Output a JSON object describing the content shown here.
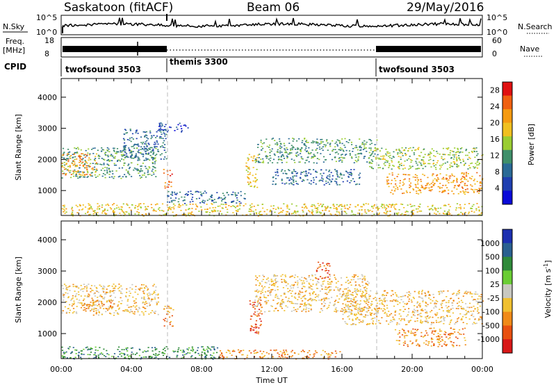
{
  "header": {
    "station": "Saskatoon (fitACF)",
    "beam": "Beam 06",
    "date": "29/May/2016"
  },
  "status_panel": {
    "nsky_label": "N.Sky",
    "nsky_ticks": [
      "10^5",
      "10^0"
    ],
    "nsearch_label": "N.Search",
    "nsearch_ticks": [
      "10^5",
      "10^0"
    ],
    "freq_label": "Freq.",
    "freq_unit": "[MHz]",
    "freq_ticks": [
      "18",
      "8"
    ],
    "nave_label": "Nave",
    "nave_ticks": [
      "60",
      "0"
    ],
    "cpid_label": "CPID",
    "cpid_segments": [
      {
        "label": "twofsound 3503",
        "start": 0,
        "end": 6
      },
      {
        "label": "themis 3300",
        "start": 6,
        "end": 18
      },
      {
        "label": "twofsound 3503",
        "start": 18,
        "end": 24
      }
    ]
  },
  "colors": {
    "power": [
      "#0a0ad8",
      "#1f3fb0",
      "#2a6a96",
      "#3f8f6a",
      "#9acd32",
      "#f0c020",
      "#f59a10",
      "#f06010",
      "#e01010"
    ],
    "velocity": [
      "#1c2fb0",
      "#2a6090",
      "#2f8a3a",
      "#6acd34",
      "#c8c8c0",
      "#f0c030",
      "#f08a18",
      "#e85010",
      "#d81818"
    ]
  },
  "chart_data": [
    {
      "type": "heatmap",
      "title": "",
      "xlabel": "",
      "ylabel": "Slant Range [km]",
      "xlim": [
        0,
        24
      ],
      "ylim": [
        200,
        4600
      ],
      "x_ticks": [
        "00:00",
        "04:00",
        "08:00",
        "12:00",
        "16:00",
        "20:00",
        "00:00"
      ],
      "y_ticks": [
        1000,
        2000,
        3000,
        4000
      ],
      "colorbar": {
        "label": "Power [dB]",
        "ticks": [
          4,
          8,
          12,
          16,
          20,
          24,
          28
        ],
        "range": [
          0,
          30
        ]
      },
      "regions": [
        {
          "t0": 0,
          "t1": 5.4,
          "r0": 1400,
          "r1": 2400,
          "level": 13
        },
        {
          "t0": 0,
          "t1": 2,
          "r0": 1500,
          "r1": 2200,
          "level": 22
        },
        {
          "t0": 3.5,
          "t1": 6,
          "r0": 2000,
          "r1": 3000,
          "level": 9
        },
        {
          "t0": 5.5,
          "t1": 7.2,
          "r0": 2900,
          "r1": 3200,
          "level": 5
        },
        {
          "t0": 5.8,
          "t1": 6.3,
          "r0": 1100,
          "r1": 1700,
          "level": 24
        },
        {
          "t0": 6,
          "t1": 10.5,
          "r0": 600,
          "r1": 1000,
          "level": 9
        },
        {
          "t0": 0,
          "t1": 24,
          "r0": 200,
          "r1": 600,
          "level": 17
        },
        {
          "t0": 10.5,
          "t1": 11.2,
          "r0": 1100,
          "r1": 2200,
          "level": 19
        },
        {
          "t0": 11,
          "t1": 18,
          "r0": 1900,
          "r1": 2700,
          "level": 10
        },
        {
          "t0": 12,
          "t1": 17,
          "r0": 1200,
          "r1": 1700,
          "level": 8
        },
        {
          "t0": 17.5,
          "t1": 24,
          "r0": 1700,
          "r1": 2400,
          "level": 14
        },
        {
          "t0": 18.5,
          "t1": 24,
          "r0": 900,
          "r1": 1600,
          "level": 21
        }
      ]
    },
    {
      "type": "heatmap",
      "title": "",
      "xlabel": "Time UT",
      "ylabel": "Slant Range [km]",
      "xlim": [
        0,
        24
      ],
      "ylim": [
        200,
        4600
      ],
      "x_ticks": [
        "00:00",
        "04:00",
        "08:00",
        "12:00",
        "16:00",
        "20:00",
        "00:00"
      ],
      "y_ticks": [
        1000,
        2000,
        3000,
        4000
      ],
      "colorbar": {
        "label": "Velocity [m s^-1]",
        "ticks": [
          "1000",
          "500",
          "100",
          "25",
          "-25",
          "-100",
          "-500",
          "-1000"
        ]
      },
      "regions": [
        {
          "t0": 0,
          "t1": 5.5,
          "r0": 1600,
          "r1": 2600,
          "level": "-25"
        },
        {
          "t0": 1,
          "t1": 3,
          "r0": 1800,
          "r1": 2100,
          "level": "-100"
        },
        {
          "t0": 5.8,
          "t1": 6.4,
          "r0": 1200,
          "r1": 1900,
          "level": "-100"
        },
        {
          "t0": 0,
          "t1": 9,
          "r0": 200,
          "r1": 600,
          "level": "100"
        },
        {
          "t0": 10.7,
          "t1": 11.4,
          "r0": 1000,
          "r1": 2100,
          "level": "-500"
        },
        {
          "t0": 11,
          "t1": 17.5,
          "r0": 1700,
          "r1": 2900,
          "level": "-25"
        },
        {
          "t0": 9,
          "t1": 16,
          "r0": 200,
          "r1": 500,
          "level": "-100"
        },
        {
          "t0": 16,
          "t1": 24,
          "r0": 1300,
          "r1": 2400,
          "level": "-25"
        },
        {
          "t0": 19,
          "t1": 23,
          "r0": 600,
          "r1": 1200,
          "level": "-100"
        },
        {
          "t0": 14.5,
          "t1": 15.3,
          "r0": 2700,
          "r1": 3300,
          "level": "-500"
        }
      ]
    }
  ],
  "axes": {
    "time_label": "Time UT"
  }
}
